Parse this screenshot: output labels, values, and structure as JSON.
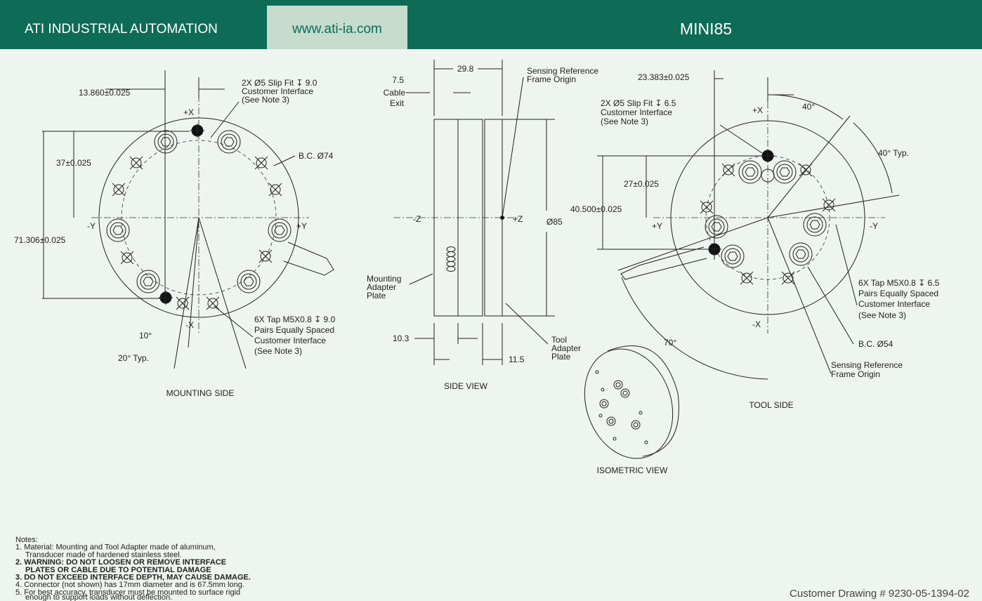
{
  "header": {
    "company": "ATI INDUSTRIAL AUTOMATION",
    "url": "www.ati-ia.com",
    "model": "MINI85"
  },
  "mounting_side": {
    "title": "MOUNTING SIDE",
    "labels": [
      "13.860±0.025",
      "2X Ø5 Slip Fit ↧ 9.0",
      "Customer Interface",
      "(See Note 3)",
      "+X",
      "B.C. Ø74",
      "37±0.025",
      "-Y",
      "+Y",
      "71.306±0.025",
      "6X Tap M5X0.8 ↧ 9.0",
      "Pairs Equally Spaced",
      "Customer Interface",
      "(See Note 3)",
      "-X",
      "10°",
      "20° Typ."
    ]
  },
  "side_view": {
    "title": "SIDE VIEW",
    "labels": [
      "29.8",
      "Sensing Reference",
      "Frame Origin",
      "7.5",
      "Cable",
      "Exit",
      "-Z",
      "+Z",
      "Ø85",
      "Mounting",
      "Adapter",
      "Plate",
      "10.3",
      "Tool",
      "Adapter",
      "Plate",
      "11.5"
    ]
  },
  "tool_side": {
    "title": "TOOL SIDE",
    "labels": [
      "23.383±0.025",
      "2X Ø5 Slip Fit ↧ 6.5",
      "Customer Interface",
      "(See Note 3)",
      "+X",
      "40°",
      "40° Typ.",
      "27±0.025",
      "40.500±0.025",
      "+Y",
      "-Y",
      "6X Tap M5X0.8 ↧ 6.5",
      "Pairs Equally Spaced",
      "Customer Interface",
      "(See Note 3)",
      "-X",
      "70°",
      "B.C. Ø54",
      "Sensing Reference",
      "Frame Origin"
    ]
  },
  "isometric_view": {
    "title": "ISOMETRIC VIEW"
  },
  "notes": {
    "heading": "Notes:",
    "lines": [
      "1.  Material: Mounting and Tool Adapter made of aluminum,",
      "Transducer made of hardened stainless steel.",
      "2.  WARNING: DO NOT LOOSEN OR REMOVE INTERFACE",
      "PLATES OR CABLE DUE TO POTENTIAL DAMAGE",
      "3.  DO NOT EXCEED INTERFACE DEPTH, MAY CAUSE DAMAGE.",
      "4.  Connector (not shown) has 17mm diameter and is 67.5mm long.",
      "5.  For best accuracy, transducer must be mounted to surface rigid",
      "enough to support loads without deflection."
    ]
  },
  "footer": {
    "drawing_number": "Customer Drawing # 9230-05-1394-02"
  }
}
